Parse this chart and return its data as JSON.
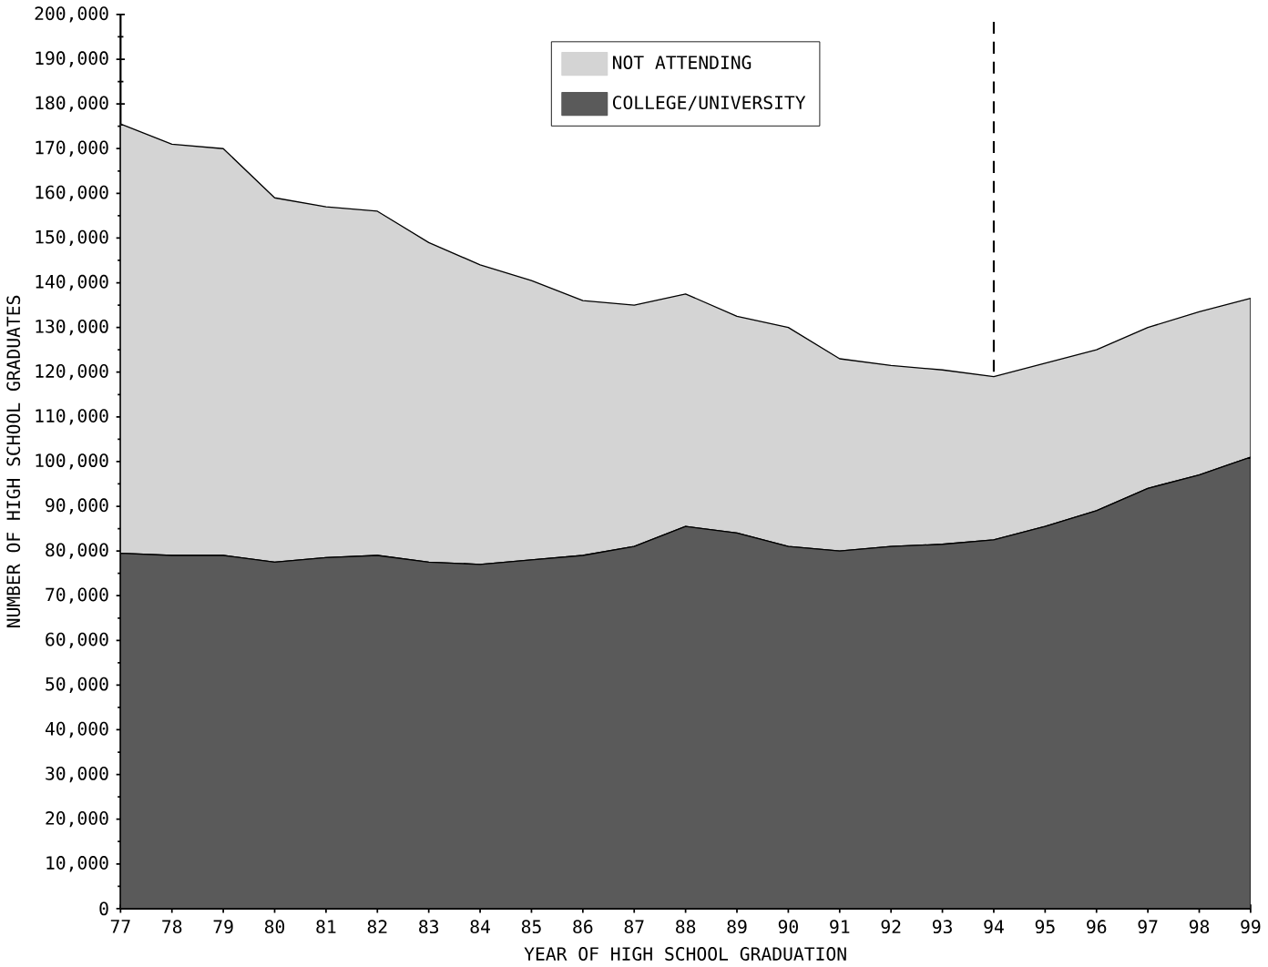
{
  "chart_data": {
    "type": "area",
    "stacked": true,
    "xlabel": "YEAR OF HIGH SCHOOL GRADUATION",
    "ylabel": "NUMBER OF HIGH SCHOOL GRADUATES",
    "x": [
      77,
      78,
      79,
      80,
      81,
      82,
      83,
      84,
      85,
      86,
      87,
      88,
      89,
      90,
      91,
      92,
      93,
      94,
      95,
      96,
      97,
      98,
      99
    ],
    "xlim": [
      77,
      99
    ],
    "xticks": [
      77,
      78,
      79,
      80,
      81,
      82,
      83,
      84,
      85,
      86,
      87,
      88,
      89,
      90,
      91,
      92,
      93,
      94,
      95,
      96,
      97,
      98,
      99
    ],
    "ylim": [
      0,
      200000
    ],
    "yticks": [
      {
        "value": 0,
        "label": "0"
      },
      {
        "value": 10000,
        "label": "10,000"
      },
      {
        "value": 20000,
        "label": "20,000"
      },
      {
        "value": 30000,
        "label": "30,000"
      },
      {
        "value": 40000,
        "label": "40,000"
      },
      {
        "value": 50000,
        "label": "50,000"
      },
      {
        "value": 60000,
        "label": "60,000"
      },
      {
        "value": 70000,
        "label": "70,000"
      },
      {
        "value": 80000,
        "label": "80,000"
      },
      {
        "value": 90000,
        "label": "90,000"
      },
      {
        "value": 100000,
        "label": "100,000"
      },
      {
        "value": 110000,
        "label": "110,000"
      },
      {
        "value": 120000,
        "label": "120,000"
      },
      {
        "value": 130000,
        "label": "130,000"
      },
      {
        "value": 140000,
        "label": "140,000"
      },
      {
        "value": 150000,
        "label": "150,000"
      },
      {
        "value": 160000,
        "label": "160,000"
      },
      {
        "value": 170000,
        "label": "170,000"
      },
      {
        "value": 180000,
        "label": "180,000"
      },
      {
        "value": 190000,
        "label": "190,000"
      },
      {
        "value": 200000,
        "label": "200,000"
      }
    ],
    "series": [
      {
        "name": "COLLEGE/UNIVERSITY",
        "color": "#5a5a5a",
        "values": [
          79500,
          79000,
          79000,
          77500,
          78500,
          79000,
          77500,
          77000,
          78000,
          79000,
          81000,
          85500,
          84000,
          81000,
          80000,
          81000,
          81500,
          82500,
          85500,
          89000,
          94000,
          97000,
          101000
        ]
      },
      {
        "name": "NOT ATTENDING",
        "color": "#d4d4d4",
        "values": [
          96000,
          92000,
          91000,
          81500,
          78500,
          77000,
          71500,
          67000,
          62500,
          57000,
          54000,
          52000,
          48500,
          49000,
          43000,
          40500,
          39000,
          36500,
          36500,
          36000,
          36000,
          36500,
          35500
        ]
      }
    ],
    "ref_lines": [
      {
        "axis": "x",
        "value": 94,
        "line_style": "dashed"
      }
    ],
    "legend": "top",
    "grid": false
  }
}
